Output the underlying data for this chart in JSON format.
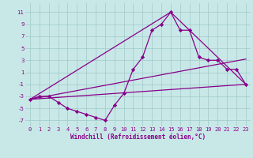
{
  "xlabel": "Windchill (Refroidissement éolien,°C)",
  "xlim": [
    -0.5,
    23.5
  ],
  "ylim": [
    -8,
    12.5
  ],
  "yticks": [
    -7,
    -5,
    -3,
    -1,
    1,
    3,
    5,
    7,
    9,
    11
  ],
  "xticks": [
    0,
    1,
    2,
    3,
    4,
    5,
    6,
    7,
    8,
    9,
    10,
    11,
    12,
    13,
    14,
    15,
    16,
    17,
    18,
    19,
    20,
    21,
    22,
    23
  ],
  "bg_color": "#c8e8e8",
  "grid_color": "#a0c8c8",
  "line_color": "#880088",
  "series1_x": [
    0,
    1,
    2,
    3,
    4,
    5,
    6,
    7,
    8,
    9,
    10,
    11,
    12,
    13,
    14,
    15,
    16,
    17,
    18,
    19,
    20,
    21,
    22,
    23
  ],
  "series1_y": [
    -3.5,
    -3,
    -3,
    -4,
    -5,
    -5.5,
    -6,
    -6.5,
    -7,
    -4.5,
    -2.5,
    1.5,
    3.5,
    8,
    9,
    11,
    8,
    8,
    3.5,
    3,
    3,
    1.5,
    1.5,
    -1
  ],
  "series2_x": [
    0,
    23
  ],
  "series2_y": [
    -3.5,
    -1
  ],
  "series3_x": [
    0,
    23
  ],
  "series3_y": [
    -3.5,
    3.2
  ],
  "series4_x": [
    0,
    15,
    23
  ],
  "series4_y": [
    -3.5,
    11,
    -1
  ],
  "marker": "D",
  "markersize": 2.2,
  "linewidth": 0.9,
  "tick_fontsize": 5.0,
  "xlabel_fontsize": 5.5
}
